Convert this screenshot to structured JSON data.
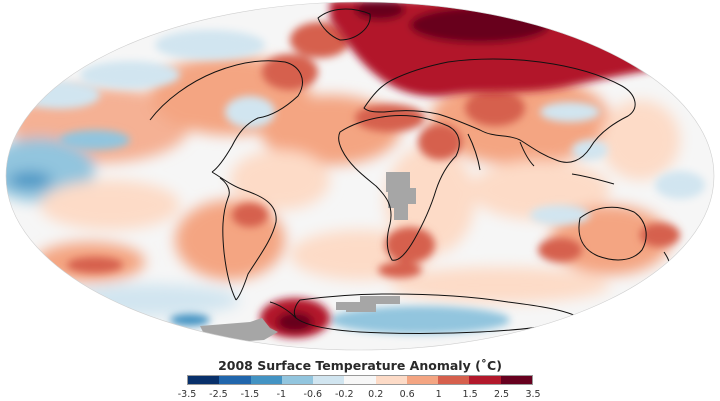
{
  "title": "2008 Surface Temperature Anomaly (˚C)",
  "map": {
    "projection": "mollweide",
    "missing_data_color": "#a6a6a6",
    "coastline_color": "#111111",
    "ocean_base_color": "#f6f6f6"
  },
  "legend": {
    "ticks": [
      "-3.5",
      "-2.5",
      "-1.5",
      "-1",
      "-0.6",
      "-0.2",
      "0.2",
      "0.6",
      "1",
      "1.5",
      "2.5",
      "3.5"
    ],
    "colors": [
      "#08306b",
      "#2166ac",
      "#4393c3",
      "#92c5de",
      "#d1e5f0",
      "#f7f7f7",
      "#fddbc7",
      "#f4a582",
      "#d6604d",
      "#b2182b",
      "#67001f"
    ]
  }
}
